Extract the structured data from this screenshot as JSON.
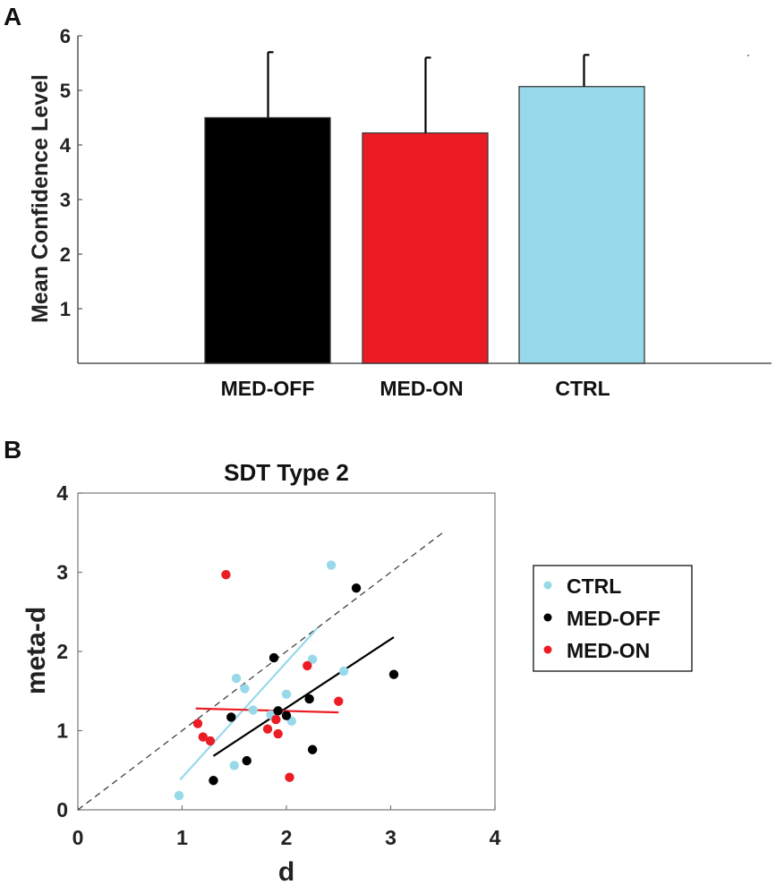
{
  "panels": {
    "a": "A",
    "b": "B"
  },
  "colors": {
    "MED-OFF": "#000000",
    "MED-ON": "#ec1c24",
    "CTRL": "#98d9e9"
  },
  "chart_data": [
    {
      "type": "bar",
      "title": "",
      "xlabel": "",
      "ylabel": "Mean Confidence Level",
      "ylim": [
        0,
        6
      ],
      "yticks": [
        "1",
        "2",
        "3",
        "4",
        "5",
        "6"
      ],
      "categories": [
        "MED-OFF",
        "MED-ON",
        "CTRL"
      ],
      "values": [
        4.5,
        4.22,
        5.07
      ],
      "errors": [
        1.2,
        1.38,
        0.58
      ]
    },
    {
      "type": "scatter",
      "title": "SDT Type 2",
      "xlabel": "d",
      "ylabel": "meta-d",
      "xlim": [
        0,
        4
      ],
      "ylim": [
        0,
        4
      ],
      "xticks": [
        "0",
        "1",
        "2",
        "3",
        "4"
      ],
      "yticks": [
        "0",
        "1",
        "2",
        "3",
        "4"
      ],
      "legend": [
        "CTRL",
        "MED-OFF",
        "MED-ON"
      ],
      "identity_line": {
        "from": [
          0,
          0
        ],
        "to": [
          3.5,
          3.5
        ]
      },
      "series": [
        {
          "name": "CTRL",
          "points": [
            [
              0.97,
              0.18
            ],
            [
              1.5,
              0.56
            ],
            [
              1.52,
              1.66
            ],
            [
              1.6,
              1.53
            ],
            [
              1.68,
              1.26
            ],
            [
              1.85,
              1.2
            ],
            [
              2.0,
              1.46
            ],
            [
              2.05,
              1.12
            ],
            [
              2.25,
              1.9
            ],
            [
              2.43,
              3.09
            ],
            [
              2.55,
              1.75
            ]
          ],
          "fit": {
            "from": [
              0.98,
              0.38
            ],
            "to": [
              2.3,
              2.3
            ]
          }
        },
        {
          "name": "MED-OFF",
          "points": [
            [
              1.3,
              0.37
            ],
            [
              1.47,
              1.17
            ],
            [
              1.62,
              0.62
            ],
            [
              1.88,
              1.92
            ],
            [
              1.92,
              1.25
            ],
            [
              2.0,
              1.19
            ],
            [
              2.22,
              1.4
            ],
            [
              2.25,
              0.76
            ],
            [
              2.67,
              2.8
            ],
            [
              3.03,
              1.71
            ]
          ],
          "fit": {
            "from": [
              1.3,
              0.68
            ],
            "to": [
              3.03,
              2.18
            ]
          }
        },
        {
          "name": "MED-ON",
          "points": [
            [
              1.15,
              1.09
            ],
            [
              1.2,
              0.92
            ],
            [
              1.27,
              0.87
            ],
            [
              1.42,
              2.97
            ],
            [
              1.82,
              1.02
            ],
            [
              1.9,
              1.14
            ],
            [
              1.92,
              0.96
            ],
            [
              2.03,
              0.41
            ],
            [
              2.2,
              1.82
            ],
            [
              2.5,
              1.37
            ]
          ],
          "fit": {
            "from": [
              1.13,
              1.28
            ],
            "to": [
              2.5,
              1.23
            ]
          }
        }
      ]
    }
  ]
}
